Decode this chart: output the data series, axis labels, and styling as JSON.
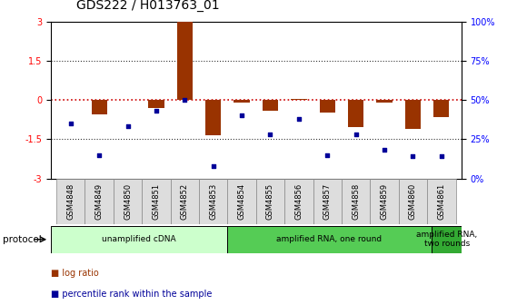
{
  "title": "GDS222 / H013763_01",
  "samples": [
    "GSM4848",
    "GSM4849",
    "GSM4850",
    "GSM4851",
    "GSM4852",
    "GSM4853",
    "GSM4854",
    "GSM4855",
    "GSM4856",
    "GSM4857",
    "GSM4858",
    "GSM4859",
    "GSM4860",
    "GSM4861"
  ],
  "log_ratio": [
    0.0,
    -0.55,
    0.0,
    -0.3,
    3.1,
    -1.35,
    -0.1,
    -0.4,
    0.05,
    -0.5,
    -1.05,
    -0.1,
    -1.1,
    -0.65
  ],
  "percentile": [
    35,
    15,
    33,
    43,
    50,
    8,
    40,
    28,
    38,
    15,
    28,
    18,
    14,
    14
  ],
  "ylim": [
    -3,
    3
  ],
  "y2lim": [
    0,
    100
  ],
  "yticks_left": [
    -3,
    -1.5,
    0,
    1.5,
    3
  ],
  "yticks_left_labels": [
    "-3",
    "-1.5",
    "0",
    "1.5",
    "3"
  ],
  "yticks_right": [
    0,
    25,
    50,
    75,
    100
  ],
  "yticks_right_labels": [
    "0%",
    "25%",
    "50%",
    "75%",
    "100%"
  ],
  "bar_color": "#993300",
  "dot_color": "#000099",
  "protocol_groups": [
    {
      "label": "unamplified cDNA",
      "start": 0,
      "end": 5,
      "color": "#ccffcc"
    },
    {
      "label": "amplified RNA, one round",
      "start": 6,
      "end": 12,
      "color": "#55cc55"
    },
    {
      "label": "amplified RNA,\ntwo rounds",
      "start": 13,
      "end": 13,
      "color": "#33aa33"
    }
  ],
  "protocol_label": "protocol",
  "legend_items": [
    {
      "label": "log ratio",
      "color": "#993300"
    },
    {
      "label": "percentile rank within the sample",
      "color": "#000099"
    }
  ],
  "bg_color": "#ffffff",
  "plot_bg": "#ffffff",
  "title_fontsize": 10,
  "tick_fontsize": 7,
  "bar_width": 0.55
}
